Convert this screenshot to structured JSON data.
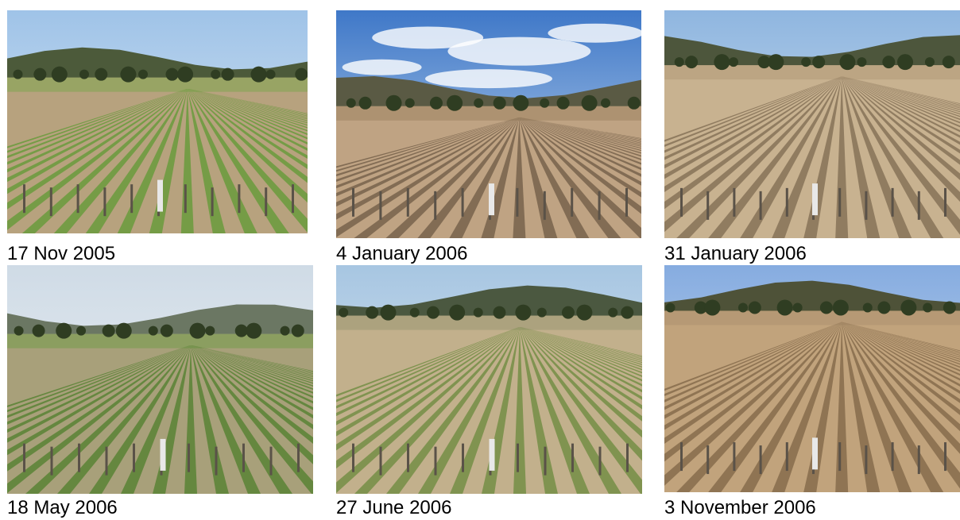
{
  "photos": [
    {
      "caption": "17 Nov 2005"
    },
    {
      "caption": "4 January 2006"
    },
    {
      "caption": "31 January 2006"
    },
    {
      "caption": "18 May 2006"
    },
    {
      "caption": "27 June 2006"
    },
    {
      "caption": "3 November 2006"
    }
  ]
}
